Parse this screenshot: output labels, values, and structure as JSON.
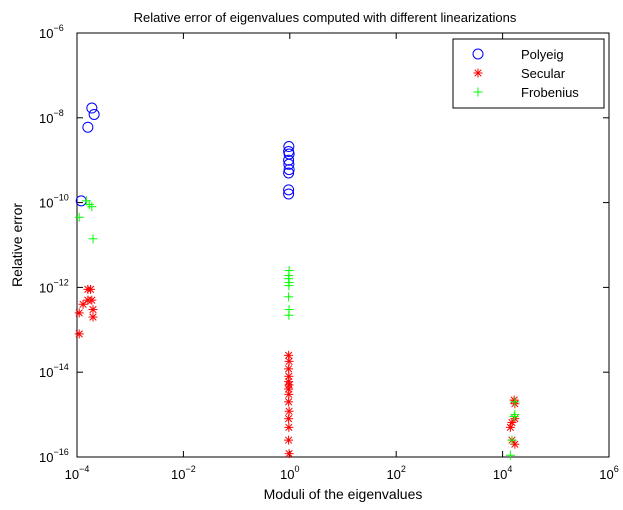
{
  "chart_data": {
    "type": "scatter",
    "title": "Relative error of eigenvalues computed with different linearizations",
    "xlabel": "Moduli of the eigenvalues",
    "ylabel": "Relative error",
    "xscale": "log",
    "yscale": "log",
    "xlim": [
      0.0001,
      1000000
    ],
    "ylim": [
      1e-16,
      1e-06
    ],
    "x_ticks": [
      {
        "base": "10",
        "exp": "−4"
      },
      {
        "base": "10",
        "exp": "−2"
      },
      {
        "base": "10",
        "exp": "0"
      },
      {
        "base": "10",
        "exp": "2"
      },
      {
        "base": "10",
        "exp": "4"
      },
      {
        "base": "10",
        "exp": "6"
      }
    ],
    "y_ticks": [
      {
        "base": "10",
        "exp": "−16"
      },
      {
        "base": "10",
        "exp": "−14"
      },
      {
        "base": "10",
        "exp": "−12"
      },
      {
        "base": "10",
        "exp": "−10"
      },
      {
        "base": "10",
        "exp": "−8"
      },
      {
        "base": "10",
        "exp": "−6"
      }
    ],
    "legend_position": "top-right",
    "grid": false,
    "series": [
      {
        "name": "Polyeig",
        "marker": "circle",
        "color": "#0000ff",
        "points": [
          [
            0.00019,
            1.7e-08
          ],
          [
            0.00021,
            1.2e-08
          ],
          [
            0.00016,
            6e-09
          ],
          [
            0.00012,
            1.1e-10
          ],
          [
            0.96,
            2.1e-09
          ],
          [
            0.95,
            1.6e-09
          ],
          [
            0.97,
            1.4e-09
          ],
          [
            0.95,
            1e-09
          ],
          [
            0.96,
            8e-10
          ],
          [
            0.97,
            6e-10
          ],
          [
            0.95,
            5e-10
          ],
          [
            0.95,
            2e-10
          ],
          [
            0.95,
            1.6e-10
          ]
        ]
      },
      {
        "name": "Secular",
        "marker": "asterisk",
        "color": "#ff0000",
        "points": [
          [
            0.00011,
            8e-14
          ],
          [
            0.00011,
            2.5e-13
          ],
          [
            0.00013,
            4e-13
          ],
          [
            0.00016,
            5e-13
          ],
          [
            0.00016,
            9e-13
          ],
          [
            0.00018,
            9e-13
          ],
          [
            0.00019,
            5e-13
          ],
          [
            0.0002,
            3e-13
          ],
          [
            0.0002,
            2e-13
          ],
          [
            0.95,
            2.5e-14
          ],
          [
            0.97,
            1.8e-14
          ],
          [
            0.95,
            1.2e-14
          ],
          [
            0.96,
            8e-15
          ],
          [
            0.95,
            6e-15
          ],
          [
            0.97,
            5e-15
          ],
          [
            0.95,
            4e-15
          ],
          [
            0.96,
            3e-15
          ],
          [
            0.95,
            2e-15
          ],
          [
            0.97,
            1.2e-15
          ],
          [
            0.95,
            8e-16
          ],
          [
            0.96,
            5e-16
          ],
          [
            0.95,
            2.5e-16
          ],
          [
            0.97,
            1.2e-16
          ],
          [
            14000,
            5e-16
          ],
          [
            15000,
            6.5e-16
          ],
          [
            16500,
            2.2e-15
          ],
          [
            17000,
            1.8e-15
          ],
          [
            17000,
            8e-16
          ],
          [
            15000,
            2.5e-16
          ],
          [
            17000,
            2e-16
          ]
        ]
      },
      {
        "name": "Frobenius",
        "marker": "plus",
        "color": "#00ff00",
        "points": [
          [
            0.00011,
            4.5e-11
          ],
          [
            0.00015,
            1.1e-10
          ],
          [
            0.00017,
            9e-11
          ],
          [
            0.00019,
            8e-11
          ],
          [
            0.0002,
            1.4e-11
          ],
          [
            0.97,
            2.5e-12
          ],
          [
            0.96,
            1.9e-12
          ],
          [
            0.95,
            1.6e-12
          ],
          [
            0.97,
            1.3e-12
          ],
          [
            0.96,
            1.1e-12
          ],
          [
            0.95,
            6e-13
          ],
          [
            0.97,
            3e-13
          ],
          [
            0.96,
            2.2e-13
          ],
          [
            14000,
            1.1e-16
          ],
          [
            15000,
            2.5e-16
          ],
          [
            16500,
            9e-16
          ],
          [
            17000,
            1e-15
          ],
          [
            17000,
            2e-15
          ]
        ]
      }
    ]
  }
}
